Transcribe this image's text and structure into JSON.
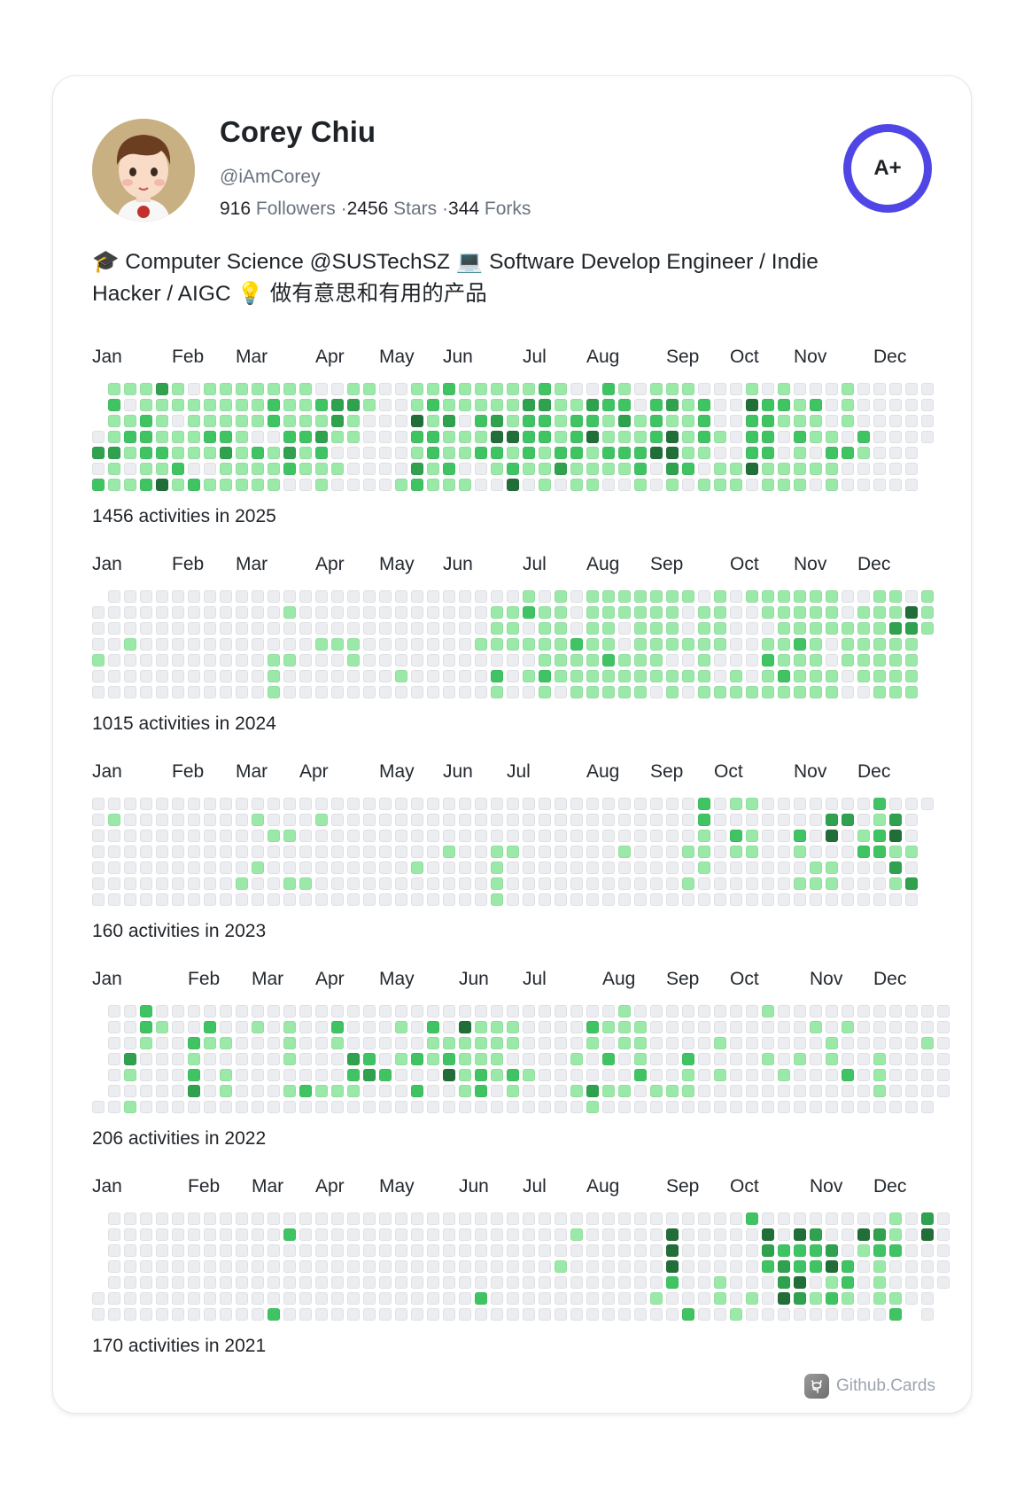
{
  "profile": {
    "name": "Corey Chiu",
    "handle": "@iAmCorey",
    "followers_count": "916",
    "followers_label": "Followers",
    "stars_count": "2456",
    "stars_label": "Stars",
    "forks_count": "344",
    "forks_label": "Forks",
    "separator": "·",
    "grade": "A+",
    "grade_color": "#4f46e5",
    "bio": "🎓 Computer Science @SUSTechSZ 💻 Software Develop Engineer / Indie Hacker / AIGC 💡 做有意思和有用的产品"
  },
  "level_colors": [
    "#ebedf0",
    "#9be9a8",
    "#40c463",
    "#30a14e",
    "#216e39"
  ],
  "years": [
    {
      "total_label": "1456 activities in 2025",
      "months": [
        {
          "label": "Jan",
          "week": 0
        },
        {
          "label": "Feb",
          "week": 5
        },
        {
          "label": "Mar",
          "week": 9
        },
        {
          "label": "Apr",
          "week": 14
        },
        {
          "label": "May",
          "week": 18
        },
        {
          "label": "Jun",
          "week": 22
        },
        {
          "label": "Jul",
          "week": 27
        },
        {
          "label": "Aug",
          "week": 31
        },
        {
          "label": "Sep",
          "week": 36
        },
        {
          "label": "Oct",
          "week": 40
        },
        {
          "label": "Nov",
          "week": 44
        },
        {
          "label": "Dec",
          "week": 49
        }
      ],
      "rows": [
        "-1113101111111001100112111112100210111000101000100000",
        "-2011111111211233100121111133113220231200422120100000",
        "-1121011111211131000413023122122131211200221110100000",
        "01221112210022311000221114422124111241210220211020000",
        "3312211131213120000012112212122122244110022010221000-",
        "0101120011112111000031200121131111203201141111100000-",
        "2112412111110010000121110040101100101011101110100000-"
      ]
    },
    {
      "total_label": "1015 activities in 2024",
      "months": [
        {
          "label": "Jan",
          "week": 0
        },
        {
          "label": "Feb",
          "week": 5
        },
        {
          "label": "Mar",
          "week": 9
        },
        {
          "label": "Apr",
          "week": 14
        },
        {
          "label": "May",
          "week": 18
        },
        {
          "label": "Jun",
          "week": 22
        },
        {
          "label": "Jul",
          "week": 27
        },
        {
          "label": "Aug",
          "week": 31
        },
        {
          "label": "Sep",
          "week": 35
        },
        {
          "label": "Oct",
          "week": 40
        },
        {
          "label": "Nov",
          "week": 44
        },
        {
          "label": "Dec",
          "week": 48
        }
      ],
      "rows": [
        "-0000000000000000000000000010101111111010111111001101",
        "00000000000010000000000001121101111110110011111011141",
        "00000000000000000000000001101101101110110001111111331",
        "0010000000000011100000001111112110111111001121011111-",
        "1000000000011000100000000000111121110010002111011111-",
        "0000000000010000000100000201211111111110101211101111-",
        "0000000000010000000000000100101111101011111111100111-"
      ]
    },
    {
      "total_label": "160 activities in 2023",
      "months": [
        {
          "label": "Jan",
          "week": 0
        },
        {
          "label": "Feb",
          "week": 5
        },
        {
          "label": "Mar",
          "week": 9
        },
        {
          "label": "Apr",
          "week": 13
        },
        {
          "label": "May",
          "week": 18
        },
        {
          "label": "Jun",
          "week": 22
        },
        {
          "label": "Jul",
          "week": 26
        },
        {
          "label": "Aug",
          "week": 31
        },
        {
          "label": "Sep",
          "week": 35
        },
        {
          "label": "Oct",
          "week": 39
        },
        {
          "label": "Nov",
          "week": 44
        },
        {
          "label": "Dec",
          "week": 48
        }
      ],
      "rows": [
        "00000000000000000000000000000000000000201100000002000",
        "0100000000100010000000000000000000000020000000330130-",
        "0000000000011000000000000000000000000010210020401240-",
        "0000000000000000000000100110000001000110110010002211-",
        "0000000000100000000010000100000000000010000001100030-",
        "0000000001001100000000000100000000000100000011100013-",
        "0000000000000000000000000100000000000000000000000000-"
      ]
    },
    {
      "total_label": "206 activities in 2022",
      "months": [
        {
          "label": "Jan",
          "week": 0
        },
        {
          "label": "Feb",
          "week": 6
        },
        {
          "label": "Mar",
          "week": 10
        },
        {
          "label": "Apr",
          "week": 14
        },
        {
          "label": "May",
          "week": 18
        },
        {
          "label": "Jun",
          "week": 23
        },
        {
          "label": "Jul",
          "week": 27
        },
        {
          "label": "Aug",
          "week": 32
        },
        {
          "label": "Sep",
          "week": 36
        },
        {
          "label": "Oct",
          "week": 40
        },
        {
          "label": "Nov",
          "week": 45
        },
        {
          "label": "Dec",
          "week": 49
        }
      ],
      "rows": [
        "-00200000000000000000000000000000100000000100000000000",
        "-00210020010100200010204111000021110000000000101000000",
        "-00100211000100100000111111000010110000100000010000010",
        "-03000100000100032012121110000102010020000101010010000",
        "-01000201000000023200041212100000020010100010002010000",
        "-00000301000121110002001201000131101110000000000010000",
        "00100000000000000000000000000001000000000000000000000"
      ]
    },
    {
      "total_label": "170 activities in 2021",
      "months": [
        {
          "label": "Jan",
          "week": 0
        },
        {
          "label": "Feb",
          "week": 6
        },
        {
          "label": "Mar",
          "week": 10
        },
        {
          "label": "Apr",
          "week": 14
        },
        {
          "label": "May",
          "week": 18
        },
        {
          "label": "Jun",
          "week": 23
        },
        {
          "label": "Jul",
          "week": 27
        },
        {
          "label": "Aug",
          "week": 31
        },
        {
          "label": "Sep",
          "week": 36
        },
        {
          "label": "Oct",
          "week": 40
        },
        {
          "label": "Nov",
          "week": 45
        },
        {
          "label": "Dec",
          "week": 49
        }
      ],
      "rows": [
        "-00000000000000000000000000000000000000002000000001030",
        "-00000000000200000000000000000100000400000404300431040",
        "-00000000000000000000000000000000000400000322230122000",
        "-00000000000000000000000000001000000400000232242010000",
        "-00000000000000000000000000000000000200100034012010000",
        "00000000000000000000000020000000000100010104312101100",
        "000000000002000000000000000000000000020010000000002 0-"
      ]
    }
  ],
  "footer": {
    "brand": "Github.Cards"
  }
}
